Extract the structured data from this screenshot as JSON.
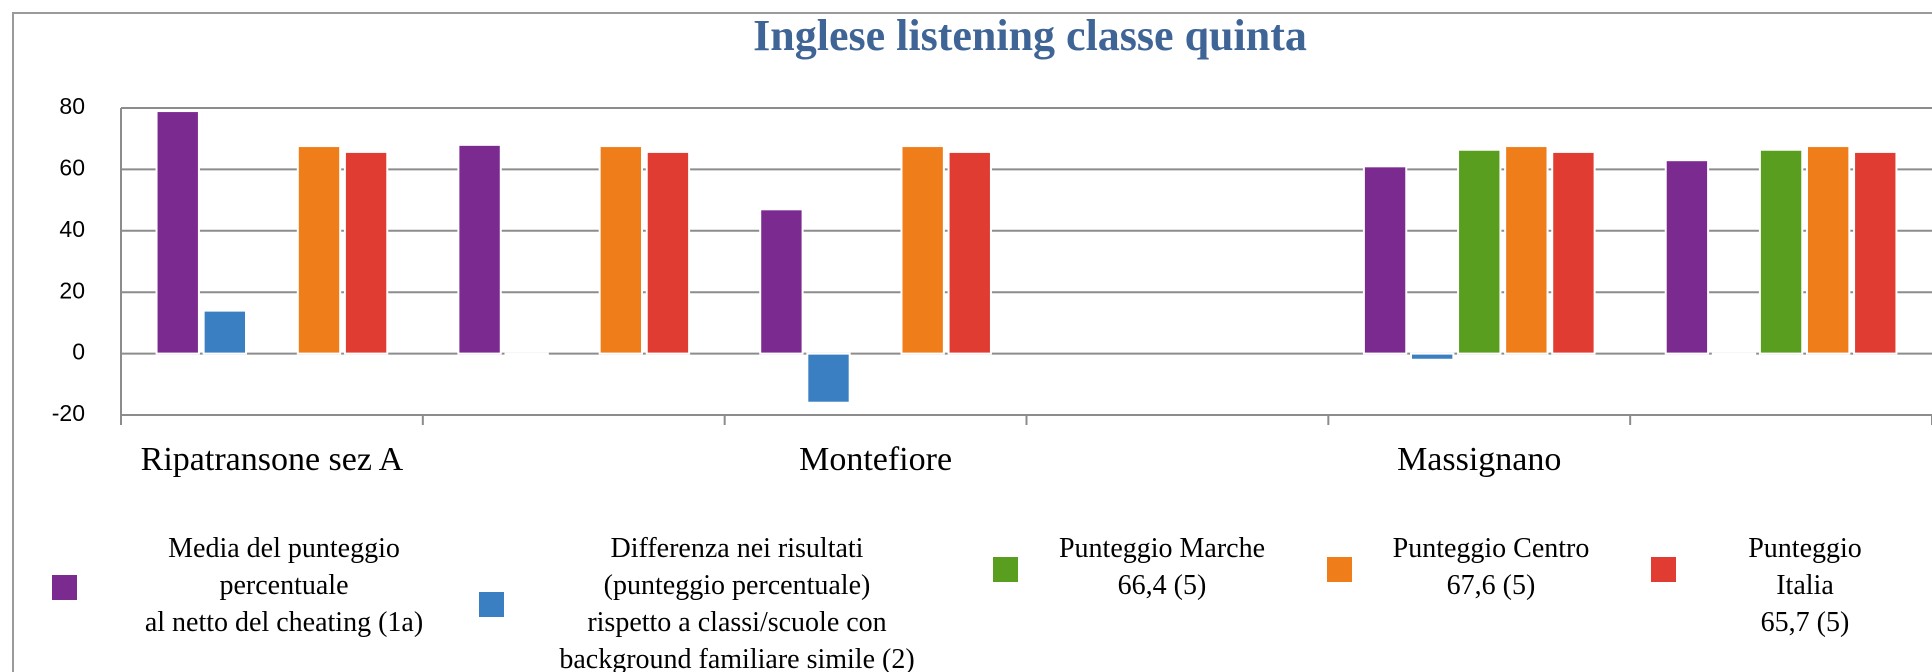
{
  "chart_data": {
    "type": "bar",
    "title": "Inglese listening classe quinta",
    "categories": [
      "Ripatransone sez A",
      null,
      "Montefiore",
      null,
      "Massignano",
      null
    ],
    "series": [
      {
        "name": "Media del punteggio\npercentuale\nal netto del cheating (1a)",
        "color": "#7b2a90",
        "values": [
          79,
          68,
          47,
          null,
          61,
          63
        ]
      },
      {
        "name": "Differenza nei risultati\n(punteggio percentuale)\nrispetto a classi/scuole con\nbackground familiare simile (2)",
        "color": "#3a7fc1",
        "values": [
          14,
          0,
          -16,
          null,
          -2,
          0
        ]
      },
      {
        "name": "Punteggio Marche\n66,4 (5)",
        "color": "#5a9e1f",
        "values": [
          null,
          null,
          null,
          null,
          66.4,
          66.4
        ]
      },
      {
        "name": "Punteggio Centro\n67,6 (5)",
        "color": "#ef7d1a",
        "values": [
          67.6,
          67.6,
          67.6,
          null,
          67.6,
          67.6
        ]
      },
      {
        "name": "Punteggio Italia\n65,7 (5)",
        "color": "#e03c31",
        "values": [
          65.7,
          65.7,
          65.7,
          null,
          65.7,
          65.7
        ]
      }
    ],
    "ylim": [
      -20,
      80
    ],
    "yticks": [
      -20,
      0,
      20,
      40,
      60,
      80
    ],
    "grid": true
  }
}
